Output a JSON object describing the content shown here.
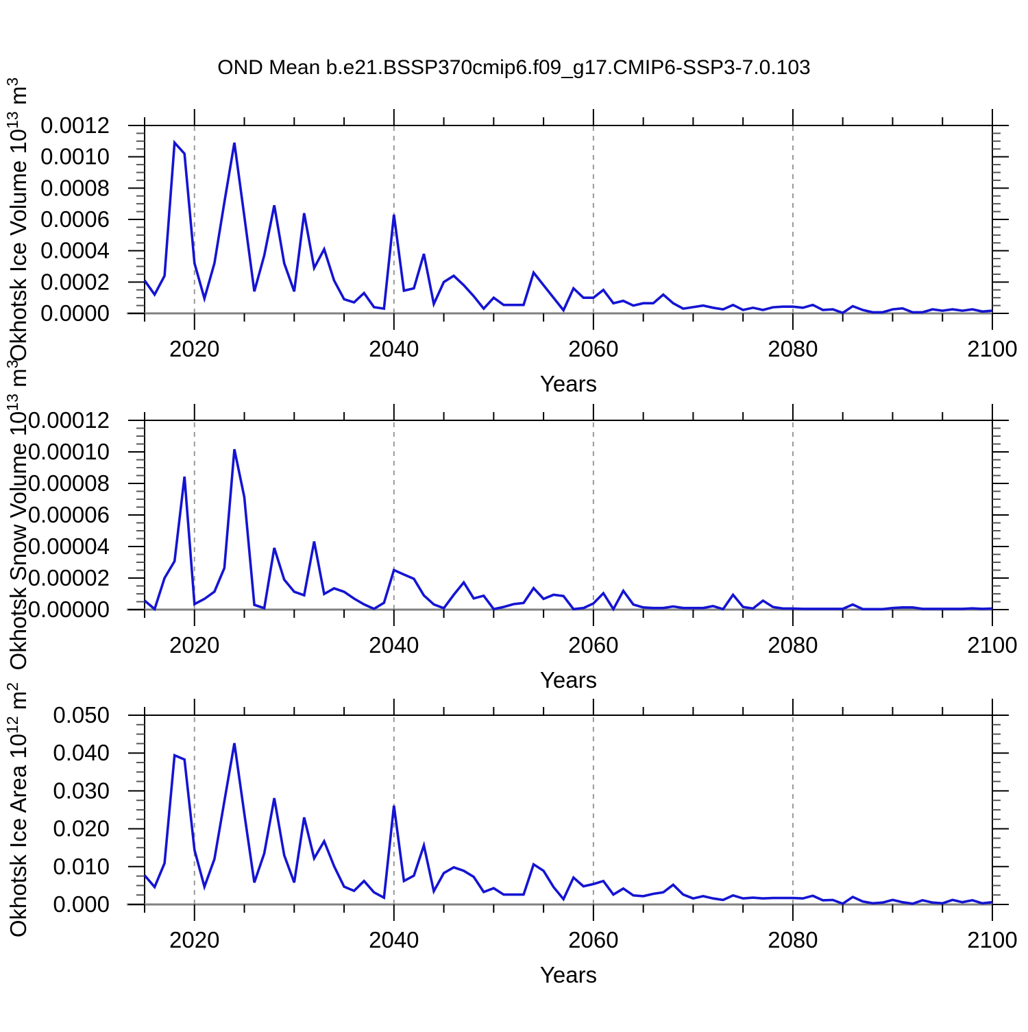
{
  "title": "OND Mean b.e21.BSSP370cmip6.f09_g17.CMIP6-SSP3-7.0.103",
  "colors": {
    "line": "#1414d2",
    "grid_dashed": "#999999",
    "zero_line": "#808080",
    "frame": "#000000",
    "text": "#000000",
    "background": "#ffffff"
  },
  "years": [
    2015,
    2016,
    2017,
    2018,
    2019,
    2020,
    2021,
    2022,
    2023,
    2024,
    2025,
    2026,
    2027,
    2028,
    2029,
    2030,
    2031,
    2032,
    2033,
    2034,
    2035,
    2036,
    2037,
    2038,
    2039,
    2040,
    2041,
    2042,
    2043,
    2044,
    2045,
    2046,
    2047,
    2048,
    2049,
    2050,
    2051,
    2052,
    2053,
    2054,
    2055,
    2056,
    2057,
    2058,
    2059,
    2060,
    2061,
    2062,
    2063,
    2064,
    2065,
    2066,
    2067,
    2068,
    2069,
    2070,
    2071,
    2072,
    2073,
    2074,
    2075,
    2076,
    2077,
    2078,
    2079,
    2080,
    2081,
    2082,
    2083,
    2084,
    2085,
    2086,
    2087,
    2088,
    2089,
    2090,
    2091,
    2092,
    2093,
    2094,
    2095,
    2096,
    2097,
    2098,
    2099,
    2100
  ],
  "chart_data": [
    {
      "type": "line",
      "name": "okhotsk-ice-volume",
      "ylabel_segments": [
        {
          "t": "Okhotsk Ice Volume 10"
        },
        {
          "t": "13",
          "sup": true
        },
        {
          "t": " m"
        },
        {
          "t": "3",
          "sup": true
        }
      ],
      "xlabel": "Years",
      "ylim": [
        0,
        0.0012
      ],
      "ytick_values": [
        0.0,
        0.0002,
        0.0004,
        0.0006,
        0.0008,
        0.001,
        0.0012
      ],
      "ytick_labels": [
        "0.0000",
        "0.0002",
        "0.0004",
        "0.0006",
        "0.0008",
        "0.0010",
        "0.0012"
      ],
      "y_minor_step": 5e-05,
      "xlim": [
        2015,
        2100
      ],
      "xtick_major_values": [
        2020,
        2040,
        2060,
        2080,
        2100
      ],
      "xtick_labels": [
        "2020",
        "2040",
        "2060",
        "2080",
        "2100"
      ],
      "x_minor_step": 5,
      "grid_x_values": [
        2020,
        2040,
        2060,
        2080
      ],
      "legend": null,
      "values": [
        0.00021,
        0.00012,
        0.00024,
        0.00109,
        0.00102,
        0.00032,
        9.5e-05,
        0.00032,
        0.00071,
        0.00109,
        0.00062,
        0.00014,
        0.00037,
        0.00069,
        0.00032,
        0.00014,
        0.00064,
        0.00029,
        0.00041,
        0.00021,
        9e-05,
        7e-05,
        0.00013,
        4e-05,
        3e-05,
        0.00063,
        0.000145,
        0.00016,
        0.00038,
        6e-05,
        0.0002,
        0.00024,
        0.00018,
        0.00011,
        3e-05,
        0.0001,
        5.4e-05,
        5.4e-05,
        5.4e-05,
        0.00026,
        0.00018,
        0.0001,
        2e-05,
        0.00016,
        0.0001,
        0.0001,
        0.00015,
        6.5e-05,
        8e-05,
        5e-05,
        6.5e-05,
        6.5e-05,
        0.00012,
        6.5e-05,
        3e-05,
        4e-05,
        5e-05,
        3.6e-05,
        2.6e-05,
        5.4e-05,
        2.2e-05,
        3.6e-05,
        2.2e-05,
        3.9e-05,
        4.3e-05,
        4.3e-05,
        3.6e-05,
        5.4e-05,
        2.2e-05,
        2.6e-05,
        3e-06,
        4.6e-05,
        2.2e-05,
        7e-06,
        7e-06,
        2.6e-05,
        3.2e-05,
        7e-06,
        7e-06,
        2.6e-05,
        1.7e-05,
        2.6e-05,
        1.7e-05,
        2.6e-05,
        1.2e-05,
        1.7e-05
      ]
    },
    {
      "type": "line",
      "name": "okhotsk-snow-volume",
      "ylabel_segments": [
        {
          "t": "Okhotsk Snow Volume 10"
        },
        {
          "t": "13",
          "sup": true
        },
        {
          "t": " m"
        },
        {
          "t": "3",
          "sup": true
        }
      ],
      "xlabel": "Years",
      "ylim": [
        0,
        0.00012
      ],
      "ytick_values": [
        0.0,
        2e-05,
        4e-05,
        6e-05,
        8e-05,
        0.0001,
        0.00012
      ],
      "ytick_labels": [
        "0.00000",
        "0.00002",
        "0.00004",
        "0.00006",
        "0.00008",
        "0.00010",
        "0.00012"
      ],
      "y_minor_step": 5e-06,
      "xlim": [
        2015,
        2100
      ],
      "xtick_major_values": [
        2020,
        2040,
        2060,
        2080,
        2100
      ],
      "xtick_labels": [
        "2020",
        "2040",
        "2060",
        "2080",
        "2100"
      ],
      "x_minor_step": 5,
      "grid_x_values": [
        2020,
        2040,
        2060,
        2080
      ],
      "legend": null,
      "values": [
        5.7e-06,
        3e-07,
        2e-05,
        3.07e-05,
        8.43e-05,
        3.5e-06,
        6.8e-06,
        1.14e-05,
        2.64e-05,
        0.0001017,
        7.13e-05,
        3e-06,
        9e-07,
        3.91e-05,
        1.9e-05,
        1.13e-05,
        9.1e-06,
        4.32e-05,
        9.9e-06,
        1.35e-05,
        1.13e-05,
        7e-06,
        3.3e-06,
        5e-07,
        4.3e-06,
        2.51e-05,
        2.22e-05,
        1.95e-05,
        9e-06,
        3.3e-06,
        9e-07,
        9.4e-06,
        1.72e-05,
        7.1e-06,
        8.8e-06,
        3e-07,
        1.7e-06,
        3.5e-06,
        4.2e-06,
        1.36e-05,
        6.8e-06,
        9.4e-06,
        8.6e-06,
        3e-07,
        1e-06,
        3.9e-06,
        1.04e-05,
        3e-07,
        1.19e-05,
        3.2e-06,
        1.4e-06,
        1e-06,
        1e-06,
        2e-06,
        1e-06,
        1e-06,
        1e-06,
        2.2e-06,
        3e-07,
        9.4e-06,
        1.7e-06,
        7e-07,
        5.7e-06,
        1.7e-06,
        7e-07,
        7e-07,
        5e-07,
        5e-07,
        5e-07,
        5e-07,
        5e-07,
        3.2e-06,
        3e-07,
        3e-07,
        3e-07,
        1e-06,
        1.4e-06,
        1.4e-06,
        5e-07,
        5e-07,
        5e-07,
        5e-07,
        5e-07,
        8e-07,
        5e-07,
        7e-07
      ]
    },
    {
      "type": "line",
      "name": "okhotsk-ice-area",
      "ylabel_segments": [
        {
          "t": "Okhotsk Ice Area 10"
        },
        {
          "t": "12",
          "sup": true
        },
        {
          "t": " m"
        },
        {
          "t": "2",
          "sup": true
        }
      ],
      "xlabel": "Years",
      "ylim": [
        0,
        0.05
      ],
      "ytick_values": [
        0.0,
        0.01,
        0.02,
        0.03,
        0.04,
        0.05
      ],
      "ytick_labels": [
        "0.000",
        "0.010",
        "0.020",
        "0.030",
        "0.040",
        "0.050"
      ],
      "y_minor_step": 0.0025,
      "xlim": [
        2015,
        2100
      ],
      "xtick_major_values": [
        2020,
        2040,
        2060,
        2080,
        2100
      ],
      "xtick_labels": [
        "2020",
        "2040",
        "2060",
        "2080",
        "2100"
      ],
      "x_minor_step": 5,
      "grid_x_values": [
        2020,
        2040,
        2060,
        2080
      ],
      "legend": null,
      "values": [
        0.0077,
        0.0046,
        0.0109,
        0.0394,
        0.0383,
        0.0144,
        0.0047,
        0.012,
        0.0273,
        0.0426,
        0.024,
        0.0058,
        0.0135,
        0.0281,
        0.013,
        0.0058,
        0.023,
        0.0122,
        0.0167,
        0.0101,
        0.0047,
        0.0036,
        0.0062,
        0.0032,
        0.0018,
        0.0261,
        0.0062,
        0.0076,
        0.0156,
        0.0035,
        0.0083,
        0.0098,
        0.0089,
        0.0073,
        0.0033,
        0.0043,
        0.0026,
        0.0026,
        0.0026,
        0.0106,
        0.0089,
        0.0046,
        0.0014,
        0.0071,
        0.0048,
        0.0054,
        0.0062,
        0.0026,
        0.0042,
        0.0024,
        0.0022,
        0.0028,
        0.0032,
        0.0052,
        0.0026,
        0.0016,
        0.0022,
        0.0016,
        0.0012,
        0.0024,
        0.0016,
        0.0018,
        0.0016,
        0.0017,
        0.0017,
        0.0017,
        0.0016,
        0.0023,
        0.0011,
        0.0012,
        0.0002,
        0.002,
        0.0008,
        0.0003,
        0.0005,
        0.0012,
        0.0006,
        0.0002,
        0.0011,
        0.0005,
        0.0003,
        0.0012,
        0.0006,
        0.0011,
        0.0003,
        0.0006
      ]
    }
  ]
}
